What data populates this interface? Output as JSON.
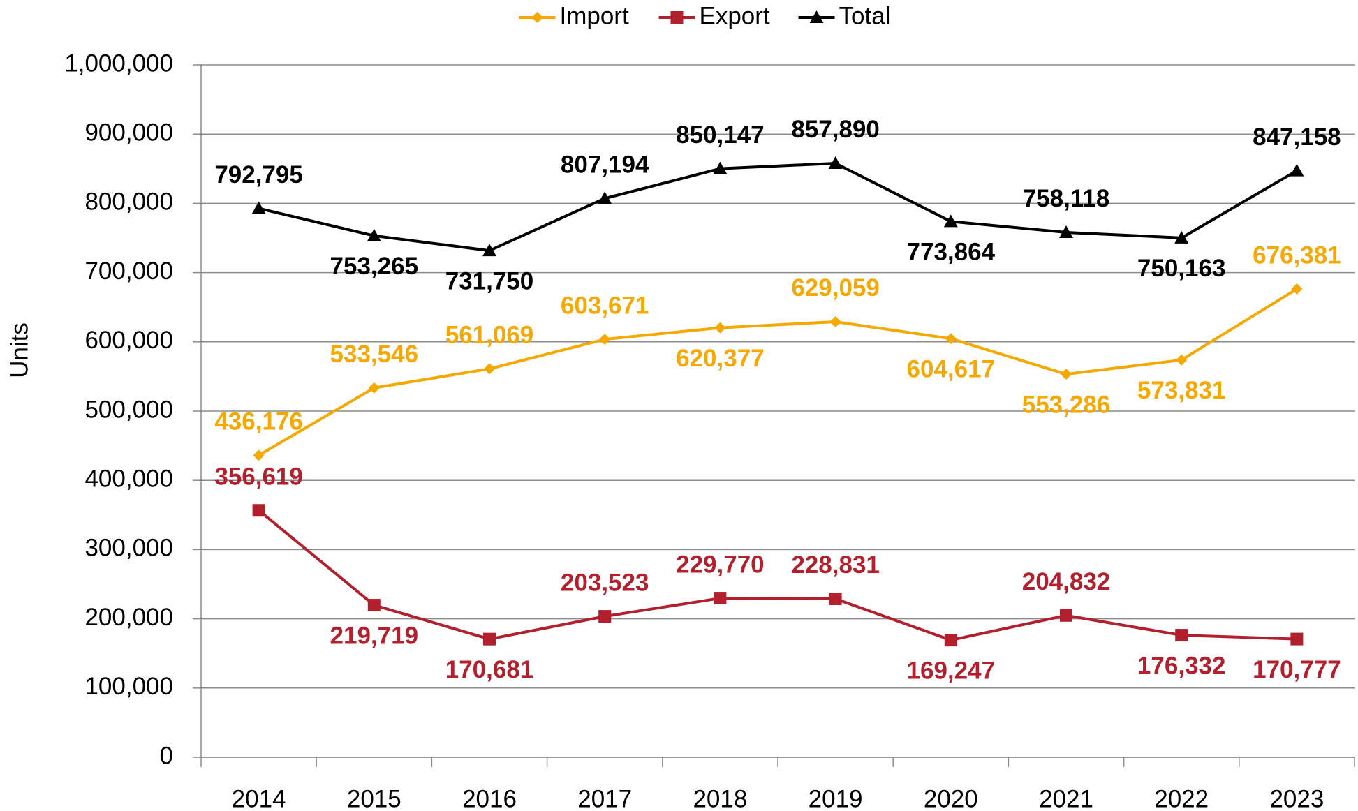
{
  "chart_data": {
    "type": "line",
    "y_label": "Units",
    "categories": [
      "2014",
      "2015",
      "2016",
      "2017",
      "2018",
      "2019",
      "2020",
      "2021",
      "2022",
      "2023"
    ],
    "series": [
      {
        "name": "Import",
        "color": "#f5a800",
        "marker": "diamond",
        "values": [
          436176,
          533546,
          561069,
          603671,
          620377,
          629059,
          604617,
          553286,
          573831,
          676381
        ],
        "value_labels": [
          "436,176",
          "533,546",
          "561,069",
          "603,671",
          "620,377",
          "629,059",
          "604,617",
          "553,286",
          "573,831",
          "676,381"
        ]
      },
      {
        "name": "Export",
        "color": "#b3202d",
        "marker": "square",
        "values": [
          356619,
          219719,
          170681,
          203523,
          229770,
          228831,
          169247,
          204832,
          176332,
          170777
        ],
        "value_labels": [
          "356,619",
          "219,719",
          "170,681",
          "203,523",
          "229,770",
          "228,831",
          "169,247",
          "204,832",
          "176,332",
          "170,777"
        ]
      },
      {
        "name": "Total",
        "color": "#000000",
        "marker": "triangle",
        "values": [
          792795,
          753265,
          731750,
          807194,
          850147,
          857890,
          773864,
          758118,
          750163,
          847158
        ],
        "value_labels": [
          "792,795",
          "753,265",
          "731,750",
          "807,194",
          "850,147",
          "857,890",
          "773,864",
          "758,118",
          "750,163",
          "847,158"
        ]
      }
    ],
    "ylim": [
      0,
      1000000
    ],
    "yticks": [
      0,
      {
        "value": 100000,
        "label": "100,000"
      },
      {
        "value": 200000,
        "label": "200,000"
      },
      {
        "value": 300000,
        "label": "300,000"
      },
      {
        "value": 400000,
        "label": "400,000"
      },
      {
        "value": 500000,
        "label": "500,000"
      },
      {
        "value": 600000,
        "label": "600,000"
      },
      {
        "value": 700000,
        "label": "700,000"
      },
      {
        "value": 800000,
        "label": "800,000"
      },
      {
        "value": 900000,
        "label": "900,000"
      },
      {
        "value": 1000000,
        "label": "1,000,000"
      }
    ],
    "grid": true,
    "legend": "top"
  }
}
